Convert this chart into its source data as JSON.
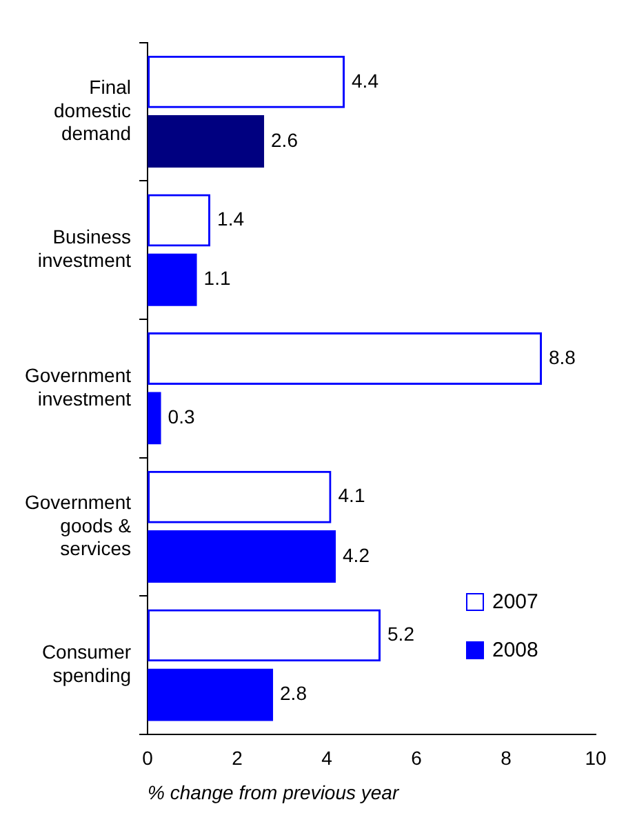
{
  "chart_data": {
    "type": "bar",
    "orientation": "horizontal",
    "categories": [
      "Final domestic demand",
      "Business investment",
      "Government investment",
      "Government goods & services",
      "Consumer spending"
    ],
    "series": [
      {
        "name": "2007",
        "color": "#0000ff",
        "values": [
          4.4,
          1.4,
          8.8,
          4.1,
          5.2
        ]
      },
      {
        "name": "2008",
        "color": "#0000ff",
        "colors": [
          "#000080",
          "#0000ff",
          "#0000ff",
          "#0000ff",
          "#0000ff"
        ],
        "values": [
          2.6,
          1.1,
          0.3,
          4.2,
          2.8
        ]
      }
    ],
    "xlim": [
      0,
      10
    ],
    "xticks": [
      0,
      2,
      4,
      6,
      8,
      10
    ],
    "xlabel": "% change from previous year",
    "data_labels": true,
    "grid": false,
    "legend": "bottom right"
  }
}
